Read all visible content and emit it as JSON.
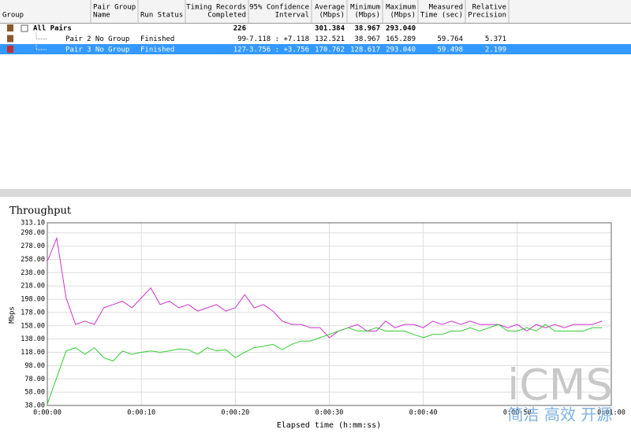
{
  "table": {
    "columns": [
      [
        "Group"
      ],
      [
        "Pair Group",
        "Name"
      ],
      [
        "Run Status"
      ],
      [
        "Timing Records",
        "Completed"
      ],
      [
        "95% Confidence",
        "Interval"
      ],
      [
        "Average",
        "(Mbps)"
      ],
      [
        "Minimum",
        "(Mbps)"
      ],
      [
        "Maximum",
        "(Mbps)"
      ],
      [
        "Measured",
        "Time (sec)"
      ],
      [
        "Relative",
        "Precision"
      ]
    ],
    "rows": [
      {
        "group": "All Pairs",
        "records": "226",
        "avg": "301.384",
        "min": "38.967",
        "max": "293.040"
      },
      {
        "name": "Pair 2 No Group",
        "status": "Finished",
        "records": "99",
        "ci": "-7.118 : +7.118",
        "avg": "132.521",
        "min": "38.967",
        "max": "165.289",
        "time": "59.764",
        "precision": "5.371"
      },
      {
        "name": "Pair 3 No Group",
        "status": "Finished",
        "records": "127",
        "ci": "-3.756 : +3.756",
        "avg": "170.762",
        "min": "128.617",
        "max": "293.040",
        "time": "59.498",
        "precision": "2.199"
      }
    ]
  },
  "chart_data": {
    "type": "line",
    "title": "Throughput",
    "ylabel": "Mbps",
    "xlabel": "Elapsed time (h:mm:ss)",
    "xlim": [
      0,
      60
    ],
    "ylim": [
      38,
      313.1
    ],
    "xticks": [
      {
        "value": 0,
        "label": "0:00:00"
      },
      {
        "value": 10,
        "label": "0:00:10"
      },
      {
        "value": 20,
        "label": "0:00:20"
      },
      {
        "value": 30,
        "label": "0:00:30"
      },
      {
        "value": 40,
        "label": "0:00:40"
      },
      {
        "value": 50,
        "label": "0:00:50"
      },
      {
        "value": 60,
        "label": "0:01:00"
      }
    ],
    "yticks": [
      {
        "value": 38,
        "label": "38.00"
      },
      {
        "value": 58,
        "label": "58.00"
      },
      {
        "value": 78,
        "label": "78.00"
      },
      {
        "value": 98,
        "label": "98.00"
      },
      {
        "value": 118,
        "label": "118.00"
      },
      {
        "value": 138,
        "label": "138.00"
      },
      {
        "value": 158,
        "label": "158.00"
      },
      {
        "value": 178,
        "label": "178.00"
      },
      {
        "value": 198,
        "label": "198.00"
      },
      {
        "value": 218,
        "label": "218.00"
      },
      {
        "value": 238,
        "label": "238.00"
      },
      {
        "value": 258,
        "label": "258.00"
      },
      {
        "value": 278,
        "label": "278.00"
      },
      {
        "value": 298,
        "label": "298.00"
      },
      {
        "value": 313.1,
        "label": "313.10"
      }
    ],
    "grid": true,
    "x": [
      0,
      1,
      2,
      3,
      4,
      5,
      6,
      7,
      8,
      9,
      10,
      11,
      12,
      13,
      14,
      15,
      16,
      17,
      18,
      19,
      20,
      21,
      22,
      23,
      24,
      25,
      26,
      27,
      28,
      29,
      30,
      31,
      32,
      33,
      34,
      35,
      36,
      37,
      38,
      39,
      40,
      41,
      42,
      43,
      44,
      45,
      46,
      47,
      48,
      49,
      50,
      51,
      52,
      53,
      54,
      55,
      56,
      57,
      58,
      59
    ],
    "series": [
      {
        "color": "#cc33cc",
        "values": [
          255,
          290,
          200,
          160,
          165,
          160,
          185,
          190,
          195,
          185,
          200,
          215,
          190,
          195,
          185,
          190,
          180,
          185,
          190,
          180,
          185,
          205,
          185,
          190,
          180,
          165,
          160,
          160,
          155,
          155,
          140,
          150,
          155,
          160,
          150,
          150,
          165,
          155,
          160,
          160,
          155,
          165,
          160,
          165,
          160,
          165,
          160,
          160,
          160,
          155,
          160,
          150,
          160,
          155,
          160,
          155,
          160,
          160,
          160,
          165
        ]
      },
      {
        "color": "#33cc33",
        "values": [
          40,
          80,
          120,
          125,
          115,
          125,
          110,
          105,
          120,
          115,
          118,
          120,
          118,
          120,
          123,
          122,
          115,
          125,
          120,
          122,
          110,
          118,
          125,
          127,
          130,
          122,
          130,
          135,
          135,
          140,
          145,
          150,
          155,
          150,
          150,
          155,
          150,
          150,
          150,
          145,
          140,
          145,
          145,
          150,
          150,
          155,
          150,
          155,
          160,
          150,
          150,
          155,
          150,
          160,
          150,
          150,
          150,
          150,
          155,
          155
        ]
      }
    ]
  },
  "watermark": {
    "logo": "iCMS",
    "slogan": "简洁 高效 开源"
  }
}
